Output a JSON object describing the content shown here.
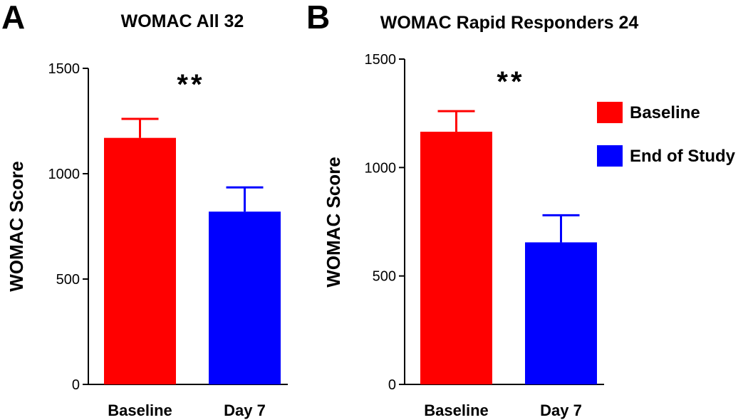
{
  "colors": {
    "baseline": "#ff0000",
    "end_of_study": "#0000ff",
    "axis": "#000000"
  },
  "chart_data": [
    {
      "type": "bar",
      "panel": "A",
      "title": "WOMAC All 32",
      "xlabel": "",
      "ylabel": "WOMAC Score",
      "ylim": [
        0,
        1500
      ],
      "yticks": [
        0,
        500,
        1000,
        1500
      ],
      "categories": [
        "Baseline",
        "Day 7"
      ],
      "values": [
        1170,
        820
      ],
      "errors": [
        90,
        115
      ],
      "significance": "**",
      "series_colors": [
        "#ff0000",
        "#0000ff"
      ]
    },
    {
      "type": "bar",
      "panel": "B",
      "title": "WOMAC Rapid Responders 24",
      "xlabel": "",
      "ylabel": "WOMAC Score",
      "ylim": [
        0,
        1500
      ],
      "yticks": [
        0,
        500,
        1000,
        1500
      ],
      "categories": [
        "Baseline",
        "Day 7"
      ],
      "values": [
        1165,
        655
      ],
      "errors": [
        95,
        125
      ],
      "significance": "**",
      "series_colors": [
        "#ff0000",
        "#0000ff"
      ]
    }
  ],
  "legend": {
    "position": "right",
    "items": [
      {
        "label": "Baseline",
        "color": "#ff0000"
      },
      {
        "label": "End of Study",
        "color": "#0000ff"
      }
    ]
  }
}
